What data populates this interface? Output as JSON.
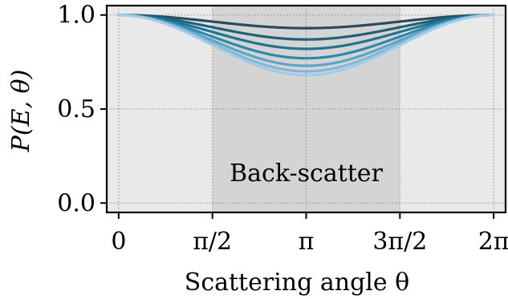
{
  "chart_data": {
    "type": "line",
    "title": "",
    "xlabel": "Scattering angle θ",
    "ylabel": "P(E, θ)",
    "xlim": [
      -0.2,
      6.483185307
    ],
    "ylim": [
      -0.05,
      1.05
    ],
    "grid": true,
    "x_ticks": [
      {
        "value": 0,
        "label": "0"
      },
      {
        "value": 1.5707963,
        "label": "π/2"
      },
      {
        "value": 3.1415927,
        "label": "π"
      },
      {
        "value": 4.712389,
        "label": "3π/2"
      },
      {
        "value": 6.2831853,
        "label": "2π"
      }
    ],
    "y_ticks": [
      {
        "value": 0.0,
        "label": "0.0"
      },
      {
        "value": 0.5,
        "label": "0.5"
      },
      {
        "value": 1.0,
        "label": "1.0"
      }
    ],
    "regions": [
      {
        "x0": -0.2,
        "x1": 1.5707963,
        "color": "#e9e9e9"
      },
      {
        "x0": 1.5707963,
        "x1": 4.712389,
        "color": "#d4d4d4"
      },
      {
        "x0": 4.712389,
        "x1": 6.483185307,
        "color": "#e9e9e9"
      }
    ],
    "annotation": {
      "text": "Back-scatter",
      "x": 3.1415927,
      "y": 0.15
    },
    "series": [
      {
        "min_value": 0.93,
        "color": "#2b4a5a"
      },
      {
        "min_value": 0.87,
        "color": "#245f78"
      },
      {
        "min_value": 0.82,
        "color": "#1f7494"
      },
      {
        "min_value": 0.77,
        "color": "#2f88ac"
      },
      {
        "min_value": 0.73,
        "color": "#5ea4c7"
      },
      {
        "min_value": 0.7,
        "color": "#7fb8d8"
      },
      {
        "min_value": 0.68,
        "color": "#a2cce6"
      }
    ]
  }
}
